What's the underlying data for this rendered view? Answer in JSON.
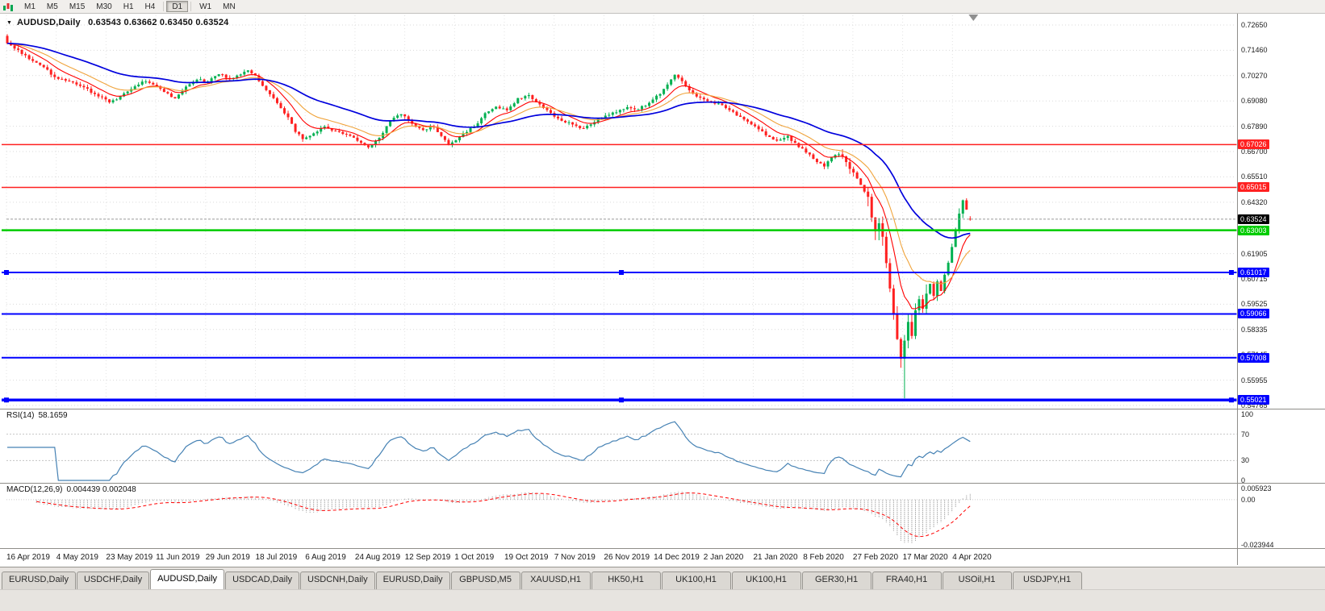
{
  "toolbar": {
    "timeframes": [
      "M1",
      "M5",
      "M15",
      "M30",
      "H1",
      "H4",
      "D1",
      "W1",
      "MN"
    ],
    "active_timeframe": "D1"
  },
  "icons": {
    "chart_menu_glyph": "▼"
  },
  "chart_header": {
    "symbol_timeframe": "AUDUSD,Daily",
    "ohlc_text": "0.63543 0.63662 0.63450 0.63524"
  },
  "indicator_labels": {
    "rsi_name": "RSI(14)",
    "rsi_value": "58.1659",
    "macd_name": "MACD(12,26,9)",
    "macd_values": "0.004439 0.002048"
  },
  "chart_data": {
    "type": "candlestick",
    "symbol": "AUDUSD",
    "timeframe": "Daily",
    "last_ohlc": {
      "open": 0.63543,
      "high": 0.63662,
      "low": 0.6345,
      "close": 0.63524
    },
    "price_axis": {
      "max": 0.7265,
      "min": 0.54765,
      "tick_labels": [
        "0.72650",
        "0.71460",
        "0.70270",
        "0.69080",
        "0.67890",
        "0.66700",
        "0.65510",
        "0.64320",
        "0.61905",
        "0.60715",
        "0.59525",
        "0.58335",
        "0.57145",
        "0.55955",
        "0.54765"
      ]
    },
    "x_tick_labels": [
      "16 Apr 2019",
      "4 May 2019",
      "23 May 2019",
      "11 Jun 2019",
      "29 Jun 2019",
      "18 Jul 2019",
      "6 Aug 2019",
      "24 Aug 2019",
      "12 Sep 2019",
      "1 Oct 2019",
      "19 Oct 2019",
      "7 Nov 2019",
      "26 Nov 2019",
      "14 Dec 2019",
      "2 Jan 2020",
      "21 Jan 2020",
      "8 Feb 2020",
      "27 Feb 2020",
      "17 Mar 2020",
      "4 Apr 2020"
    ],
    "num_candles": 265,
    "price_path_anchors": [
      [
        0,
        0.718
      ],
      [
        3,
        0.7148
      ],
      [
        6,
        0.7105
      ],
      [
        9,
        0.7078
      ],
      [
        13,
        0.7022
      ],
      [
        17,
        0.7
      ],
      [
        21,
        0.6972
      ],
      [
        25,
        0.693
      ],
      [
        28,
        0.6902
      ],
      [
        31,
        0.6928
      ],
      [
        34,
        0.6965
      ],
      [
        37,
        0.7
      ],
      [
        40,
        0.6984
      ],
      [
        43,
        0.695
      ],
      [
        46,
        0.6921
      ],
      [
        49,
        0.6975
      ],
      [
        52,
        0.7008
      ],
      [
        55,
        0.6998
      ],
      [
        58,
        0.7035
      ],
      [
        61,
        0.7012
      ],
      [
        64,
        0.7032
      ],
      [
        66,
        0.7052
      ],
      [
        68,
        0.7028
      ],
      [
        71,
        0.6958
      ],
      [
        74,
        0.6898
      ],
      [
        77,
        0.6832
      ],
      [
        79,
        0.6762
      ],
      [
        81,
        0.673
      ],
      [
        84,
        0.6756
      ],
      [
        87,
        0.6788
      ],
      [
        90,
        0.6766
      ],
      [
        93,
        0.675
      ],
      [
        96,
        0.6722
      ],
      [
        99,
        0.669
      ],
      [
        102,
        0.6736
      ],
      [
        105,
        0.6816
      ],
      [
        108,
        0.6846
      ],
      [
        111,
        0.68
      ],
      [
        114,
        0.6772
      ],
      [
        117,
        0.6786
      ],
      [
        119,
        0.6742
      ],
      [
        121,
        0.67
      ],
      [
        123,
        0.6722
      ],
      [
        126,
        0.6762
      ],
      [
        129,
        0.6802
      ],
      [
        131,
        0.685
      ],
      [
        134,
        0.688
      ],
      [
        137,
        0.6864
      ],
      [
        140,
        0.692
      ],
      [
        143,
        0.6934
      ],
      [
        146,
        0.689
      ],
      [
        149,
        0.685
      ],
      [
        152,
        0.6816
      ],
      [
        155,
        0.6796
      ],
      [
        158,
        0.678
      ],
      [
        161,
        0.681
      ],
      [
        164,
        0.684
      ],
      [
        167,
        0.6856
      ],
      [
        170,
        0.688
      ],
      [
        173,
        0.687
      ],
      [
        176,
        0.69
      ],
      [
        179,
        0.6942
      ],
      [
        181,
        0.6986
      ],
      [
        183,
        0.703
      ],
      [
        185,
        0.7
      ],
      [
        187,
        0.6958
      ],
      [
        189,
        0.693
      ],
      [
        192,
        0.6906
      ],
      [
        196,
        0.689
      ],
      [
        199,
        0.6856
      ],
      [
        202,
        0.682
      ],
      [
        205,
        0.679
      ],
      [
        208,
        0.6746
      ],
      [
        211,
        0.672
      ],
      [
        214,
        0.6742
      ],
      [
        217,
        0.6692
      ],
      [
        220,
        0.6656
      ],
      [
        222,
        0.662
      ],
      [
        224,
        0.66
      ],
      [
        226,
        0.6642
      ],
      [
        228,
        0.666
      ],
      [
        230,
        0.6622
      ],
      [
        232,
        0.657
      ],
      [
        234,
        0.6512
      ],
      [
        236,
        0.6462
      ],
      [
        237,
        0.6362
      ],
      [
        238,
        0.6292
      ],
      [
        239,
        0.6332
      ],
      [
        240,
        0.627
      ],
      [
        241,
        0.615
      ],
      [
        242,
        0.603
      ],
      [
        243,
        0.59
      ],
      [
        244,
        0.579
      ],
      [
        245,
        0.57
      ],
      [
        246,
        0.578
      ],
      [
        247,
        0.587
      ],
      [
        248,
        0.58
      ],
      [
        249,
        0.592
      ],
      [
        250,
        0.598
      ],
      [
        251,
        0.5932
      ],
      [
        252,
        0.6
      ],
      [
        253,
        0.605
      ],
      [
        254,
        0.5992
      ],
      [
        255,
        0.606
      ],
      [
        256,
        0.6012
      ],
      [
        257,
        0.609
      ],
      [
        258,
        0.615
      ],
      [
        259,
        0.622
      ],
      [
        260,
        0.63
      ],
      [
        261,
        0.638
      ],
      [
        262,
        0.644
      ],
      [
        263,
        0.64
      ],
      [
        264,
        0.63524
      ]
    ],
    "crash_low": {
      "index": 246,
      "low": 0.551
    },
    "candle_colors": {
      "up": "#00b050",
      "down": "#ff2020"
    },
    "moving_averages": [
      {
        "name": "ma-fast",
        "period": 9,
        "color": "#ff0000",
        "width": 1.1
      },
      {
        "name": "ma-medium",
        "period": 18,
        "color": "#f0a43c",
        "width": 1.1
      },
      {
        "name": "ma-slow",
        "period": 45,
        "color": "#0000dd",
        "width": 1.7
      }
    ],
    "hlines": [
      {
        "price": 0.67026,
        "label": "0.67026",
        "color": "#ff2020",
        "width": 1.5,
        "handles": false
      },
      {
        "price": 0.65015,
        "label": "0.65015",
        "color": "#ff2020",
        "width": 1.5,
        "handles": false
      },
      {
        "price": 0.63003,
        "label": "0.63003",
        "color": "#00cc00",
        "width": 2.5,
        "handles": false
      },
      {
        "price": 0.61017,
        "label": "0.61017",
        "color": "#0000ff",
        "width": 2,
        "handles": true
      },
      {
        "price": 0.59066,
        "label": "0.59066",
        "color": "#0000ff",
        "width": 2,
        "handles": false
      },
      {
        "price": 0.57008,
        "label": "0.57008",
        "color": "#0000ff",
        "width": 2,
        "handles": false
      },
      {
        "price": 0.55021,
        "label": "0.55021",
        "color": "#0000ff",
        "width": 3.5,
        "handles": true
      }
    ],
    "current_price": {
      "value": 0.63524,
      "label": "0.63524",
      "badge_color": "#000000"
    },
    "rsi": {
      "period": 14,
      "current": 58.1659,
      "color": "#4682b4",
      "levels": [
        {
          "v": 100,
          "label": "100",
          "dotted": false
        },
        {
          "v": 70,
          "label": "70",
          "dotted": true
        },
        {
          "v": 30,
          "label": "30",
          "dotted": true
        },
        {
          "v": 0,
          "label": "0",
          "dotted": false
        }
      ]
    },
    "macd": {
      "fast": 12,
      "slow": 26,
      "signal": 9,
      "current_macd": 0.004439,
      "current_signal": 0.002048,
      "hist_color": "#a3a3a3",
      "signal_color": "#ff0000",
      "axis": [
        {
          "v": 0.005923,
          "label": "0.005923"
        },
        {
          "v": 0,
          "label": "0.00"
        },
        {
          "v": -0.023944,
          "label": "-0.023944"
        }
      ]
    }
  },
  "tabs": {
    "items": [
      {
        "label": "EURUSD,Daily",
        "active": false
      },
      {
        "label": "USDCHF,Daily",
        "active": false
      },
      {
        "label": "AUDUSD,Daily",
        "active": true
      },
      {
        "label": "USDCAD,Daily",
        "active": false
      },
      {
        "label": "USDCNH,Daily",
        "active": false
      },
      {
        "label": "EURUSD,Daily",
        "active": false
      },
      {
        "label": "GBPUSD,M5",
        "active": false
      },
      {
        "label": "XAUUSD,H1",
        "active": false
      },
      {
        "label": "HK50,H1",
        "active": false
      },
      {
        "label": "UK100,H1",
        "active": false
      },
      {
        "label": "UK100,H1",
        "active": false
      },
      {
        "label": "GER30,H1",
        "active": false
      },
      {
        "label": "FRA40,H1",
        "active": false
      },
      {
        "label": "USOil,H1",
        "active": false
      },
      {
        "label": "USDJPY,H1",
        "active": false
      }
    ]
  }
}
